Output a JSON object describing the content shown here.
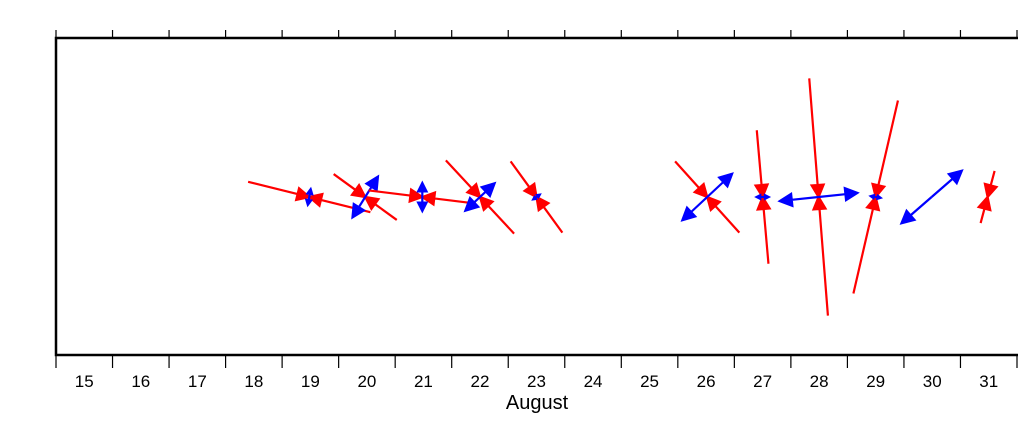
{
  "chart_data": {
    "type": "strain-crosses",
    "x_label": "August",
    "xlim": [
      15,
      32
    ],
    "xticks": [
      15,
      16,
      17,
      18,
      19,
      20,
      21,
      22,
      23,
      24,
      25,
      26,
      27,
      28,
      29,
      30,
      31,
      32
    ],
    "day_labels": [
      15,
      16,
      17,
      18,
      19,
      20,
      21,
      22,
      23,
      24,
      25,
      26,
      27,
      28,
      29,
      30,
      31
    ],
    "compression_color": "#ff0000",
    "extension_color": "#0000ff",
    "events": [
      {
        "x": 19.48,
        "compression": 63,
        "compression_angle": -14,
        "extension": 8,
        "extension_angle": 80
      },
      {
        "x": 20.47,
        "compression": 39,
        "compression_angle": -36,
        "extension": 24,
        "extension_angle": 58
      },
      {
        "x": 21.48,
        "compression": 54,
        "compression_angle": -7,
        "extension": 14,
        "extension_angle": 90
      },
      {
        "x": 22.5,
        "compression": 50,
        "compression_angle": -47,
        "extension": 20,
        "extension_angle": 43
      },
      {
        "x": 23.5,
        "compression": 44,
        "compression_angle": -54,
        "extension": 4,
        "extension_angle": 35
      },
      {
        "x": 26.52,
        "compression": 48,
        "compression_angle": -48,
        "extension": 34,
        "extension_angle": 43
      },
      {
        "x": 27.5,
        "compression": 67,
        "compression_angle": -85,
        "extension": 6,
        "extension_angle": 0
      },
      {
        "x": 28.49,
        "compression": 119,
        "compression_angle": -85.5,
        "extension": 39,
        "extension_angle": 6
      },
      {
        "x": 29.5,
        "compression": 99,
        "compression_angle": 77,
        "extension": 5,
        "extension_angle": -10
      },
      {
        "x": 30.49,
        "compression": 0,
        "compression_angle": 0,
        "extension": 40,
        "extension_angle": 41
      },
      {
        "x": 31.48,
        "compression": 27,
        "compression_angle": 75,
        "extension": 0,
        "extension_angle": 0
      }
    ]
  }
}
